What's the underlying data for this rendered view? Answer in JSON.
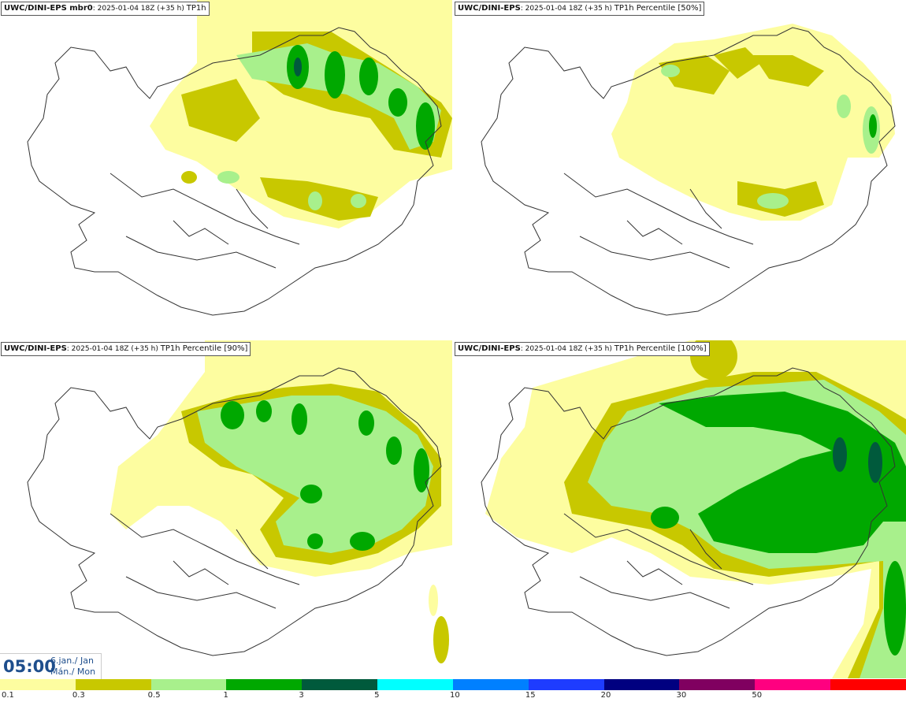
{
  "panels": [
    {
      "model": "UWC/DINI-EPS mbr0",
      "run": "2025-01-04 18Z (+35 h)",
      "field": "TP1h"
    },
    {
      "model": "UWC/DINI-EPS",
      "run": "2025-01-04 18Z (+35 h)",
      "field": "TP1h Percentile [50%]"
    },
    {
      "model": "UWC/DINI-EPS",
      "run": "2025-01-04 18Z (+35 h)",
      "field": "TP1h Percentile [90%]"
    },
    {
      "model": "UWC/DINI-EPS",
      "run": "2025-01-04 18Z (+35 h)",
      "field": "TP1h Percentile [100%]"
    }
  ],
  "valid_time": {
    "time": "05:00",
    "date_line1": "6.jan./ Jan",
    "date_line2": "Mán./ Mon"
  },
  "legend": {
    "colors": [
      "#fdfda0",
      "#c8c800",
      "#a8f08c",
      "#00a800",
      "#005a3c",
      "#00ffff",
      "#0080ff",
      "#1e3cff",
      "#000080",
      "#800060",
      "#ff0080",
      "#ff0000"
    ],
    "labels": [
      "0.1",
      "0.3",
      "0.5",
      "1",
      "3",
      "5",
      "10",
      "15",
      "20",
      "30",
      "50"
    ]
  }
}
